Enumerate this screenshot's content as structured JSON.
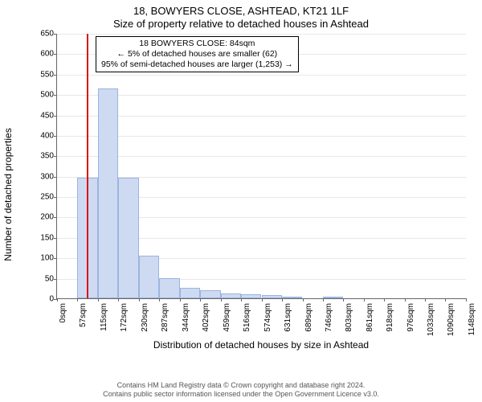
{
  "title": {
    "line1": "18, BOWYERS CLOSE, ASHTEAD, KT21 1LF",
    "line2": "Size of property relative to detached houses in Ashtead"
  },
  "ylabel": "Number of detached properties",
  "xlabel": "Distribution of detached houses by size in Ashtead",
  "chart": {
    "type": "histogram",
    "y": {
      "min": 0,
      "max": 650,
      "step": 50
    },
    "x": {
      "min": 0,
      "max": 1150,
      "ticks": [
        0,
        57,
        115,
        172,
        230,
        287,
        344,
        402,
        459,
        516,
        574,
        631,
        689,
        746,
        803,
        861,
        918,
        976,
        1033,
        1090,
        1148
      ],
      "unit": "sqm"
    },
    "bar_width_sqm": 57,
    "bar_fill": "#cedaf2",
    "bar_border": "#9bb4e0",
    "grid_color": "#e8e8e8",
    "axis_color": "#666666",
    "bars": [
      {
        "start": 0,
        "count": 0
      },
      {
        "start": 57,
        "count": 295
      },
      {
        "start": 115,
        "count": 515
      },
      {
        "start": 172,
        "count": 295
      },
      {
        "start": 230,
        "count": 105
      },
      {
        "start": 287,
        "count": 50
      },
      {
        "start": 344,
        "count": 25
      },
      {
        "start": 402,
        "count": 20
      },
      {
        "start": 459,
        "count": 12
      },
      {
        "start": 516,
        "count": 10
      },
      {
        "start": 574,
        "count": 8
      },
      {
        "start": 631,
        "count": 3
      },
      {
        "start": 689,
        "count": 0
      },
      {
        "start": 746,
        "count": 2
      },
      {
        "start": 803,
        "count": 0
      },
      {
        "start": 861,
        "count": 0
      },
      {
        "start": 918,
        "count": 0
      },
      {
        "start": 976,
        "count": 0
      },
      {
        "start": 1033,
        "count": 0
      },
      {
        "start": 1090,
        "count": 0
      }
    ],
    "marker": {
      "value": 84,
      "color": "#dd1111"
    }
  },
  "info_box": {
    "line1": "18 BOWYERS CLOSE: 84sqm",
    "line2": "← 5% of detached houses are smaller (62)",
    "line3": "95% of semi-detached houses are larger (1,253) →"
  },
  "footer": {
    "line1": "Contains HM Land Registry data © Crown copyright and database right 2024.",
    "line2": "Contains public sector information licensed under the Open Government Licence v3.0."
  }
}
